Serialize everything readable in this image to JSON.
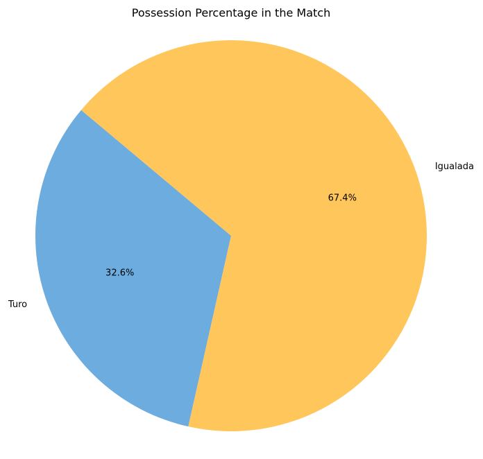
{
  "chart_data": {
    "type": "pie",
    "title": "Possession Percentage in the Match",
    "categories": [
      "Turo",
      "Igualada"
    ],
    "values": [
      32.6,
      67.4
    ],
    "percent_labels": [
      "32.6%",
      "67.4%"
    ],
    "colors": [
      "#6CACDE",
      "#FFC65C"
    ],
    "start_angle_deg": 140,
    "direction": "counterclockwise",
    "legend": "none"
  }
}
